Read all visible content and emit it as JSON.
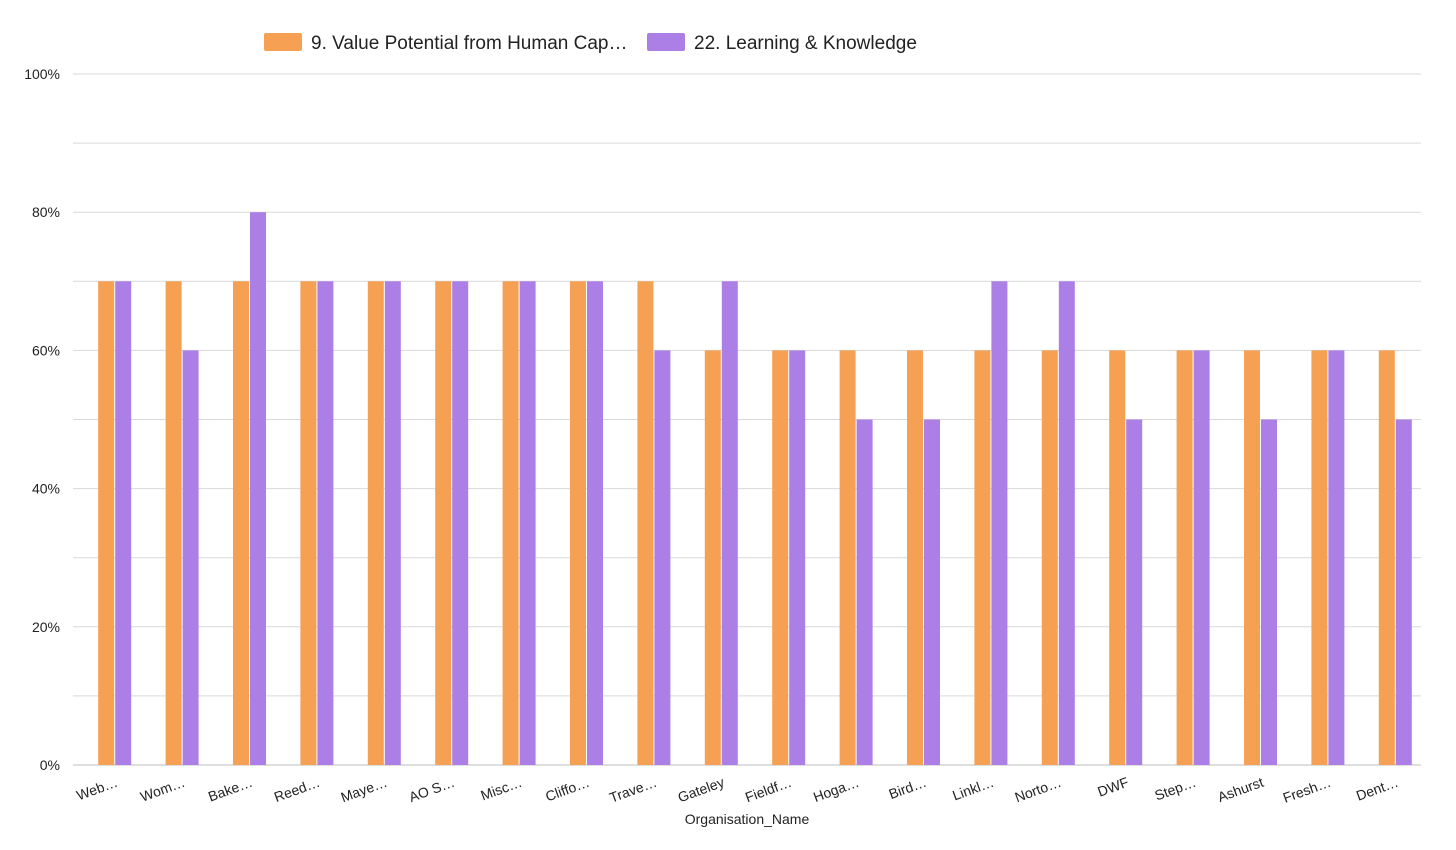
{
  "chart_data": {
    "type": "bar",
    "title": "",
    "xlabel": "Organisation_Name",
    "ylabel": "",
    "ylim": [
      0,
      100
    ],
    "y_ticks": [
      "0%",
      "20%",
      "40%",
      "60%",
      "80%",
      "100%"
    ],
    "grid": true,
    "legend_position": "top-center",
    "categories": [
      "Web…",
      "Wom…",
      "Bake…",
      "Reed…",
      "Maye…",
      "AO S…",
      "Misc…",
      "Cliffo…",
      "Trave…",
      "Gateley",
      "Fieldf…",
      "Hoga…",
      "Bird…",
      "Linkl…",
      "Norto…",
      "DWF",
      "Step…",
      "Ashurst",
      "Fresh…",
      "Dent…"
    ],
    "series": [
      {
        "name": "9. Value Potential from Human Cap…",
        "color": "#f5a052",
        "values": [
          70,
          70,
          70,
          70,
          70,
          70,
          70,
          70,
          70,
          60,
          60,
          60,
          60,
          60,
          60,
          60,
          60,
          60,
          60,
          60
        ]
      },
      {
        "name": "22. Learning & Knowledge",
        "color": "#ab7fe6",
        "values": [
          70,
          60,
          80,
          70,
          70,
          70,
          70,
          70,
          60,
          70,
          60,
          50,
          50,
          70,
          70,
          50,
          60,
          50,
          60,
          50
        ]
      }
    ]
  }
}
